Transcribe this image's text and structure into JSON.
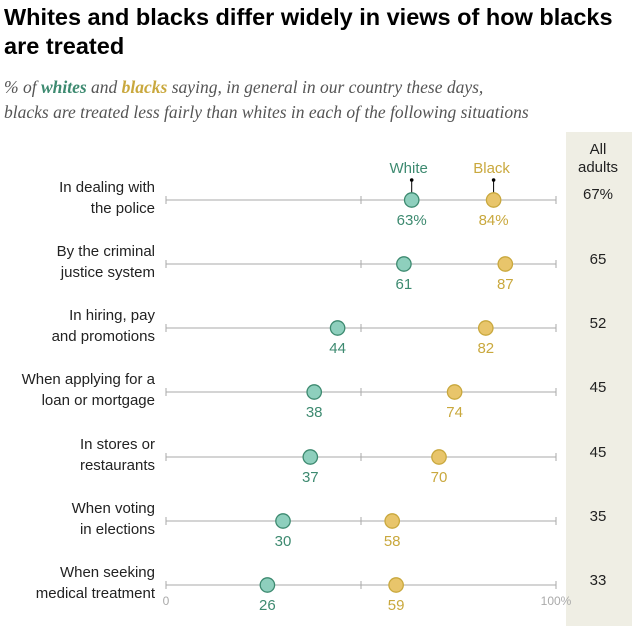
{
  "title": "Whites and blacks differ widely in views of how blacks are treated",
  "subtitle": {
    "prefix": "% of ",
    "whites_word": "whites",
    "and_word": " and ",
    "blacks_word": "blacks",
    "rest_line1": " saying, in general in our country these days,",
    "line2": "blacks are treated less fairly than whites in each of the following situations"
  },
  "colors": {
    "white_series": "#8ecfbd",
    "white_stroke": "#3d8a70",
    "black_series": "#e8c56b",
    "black_stroke": "#c9a83d",
    "all_adults_bg": "#efeee4",
    "axis_line": "#aaaaaa"
  },
  "chart_data": {
    "type": "scatter",
    "categories": [
      [
        "In dealing with",
        "the police"
      ],
      [
        "By the criminal",
        "justice system"
      ],
      [
        "In hiring, pay",
        "and promotions"
      ],
      [
        "When applying for a",
        "loan or mortgage"
      ],
      [
        "In stores or",
        "restaurants"
      ],
      [
        "When voting",
        "in elections"
      ],
      [
        "When seeking",
        "medical treatment"
      ]
    ],
    "series": [
      {
        "name": "White",
        "values": [
          63,
          61,
          44,
          38,
          37,
          30,
          26
        ]
      },
      {
        "name": "Black",
        "values": [
          84,
          87,
          82,
          74,
          70,
          58,
          59
        ]
      }
    ],
    "value_labels": {
      "White": [
        "63%",
        "61",
        "44",
        "38",
        "37",
        "30",
        "26"
      ],
      "Black": [
        "84%",
        "87",
        "82",
        "74",
        "70",
        "58",
        "59"
      ]
    },
    "all_adults": {
      "header": [
        "All",
        "adults"
      ],
      "labels": [
        "67%",
        "65",
        "52",
        "45",
        "45",
        "35",
        "33"
      ]
    },
    "xlim": [
      0,
      100
    ],
    "x_tick_labels": [
      "0",
      "100%"
    ],
    "legend_placement": "above first row, next to dots"
  }
}
